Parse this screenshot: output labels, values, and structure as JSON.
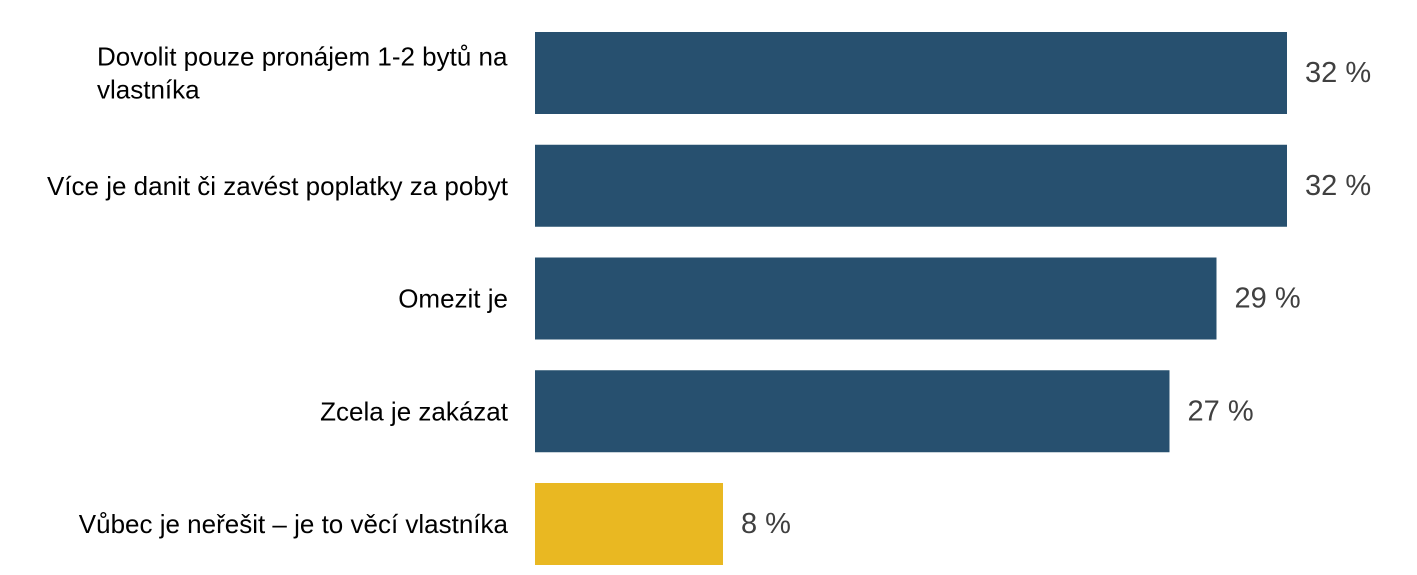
{
  "chart_data": {
    "type": "bar",
    "orientation": "horizontal",
    "categories": [
      [
        "Dovolit pouze pronájem 1-2 bytů na",
        "vlastníka"
      ],
      [
        "Více je danit či zavést poplatky za pobyt"
      ],
      [
        "Omezit je"
      ],
      [
        "Zcela je zakázat"
      ],
      [
        "Vůbec je neřešit – je to věcí vlastníka"
      ]
    ],
    "values": [
      32,
      32,
      29,
      27,
      8
    ],
    "value_labels": [
      "32 %",
      "32 %",
      "29 %",
      "27 %",
      "8 %"
    ],
    "unit": "%",
    "colors": [
      "#27506F",
      "#27506F",
      "#27506F",
      "#27506F",
      "#E9B822"
    ],
    "title": "",
    "xlabel": "",
    "ylabel": "",
    "grid": false,
    "legend": "none"
  }
}
